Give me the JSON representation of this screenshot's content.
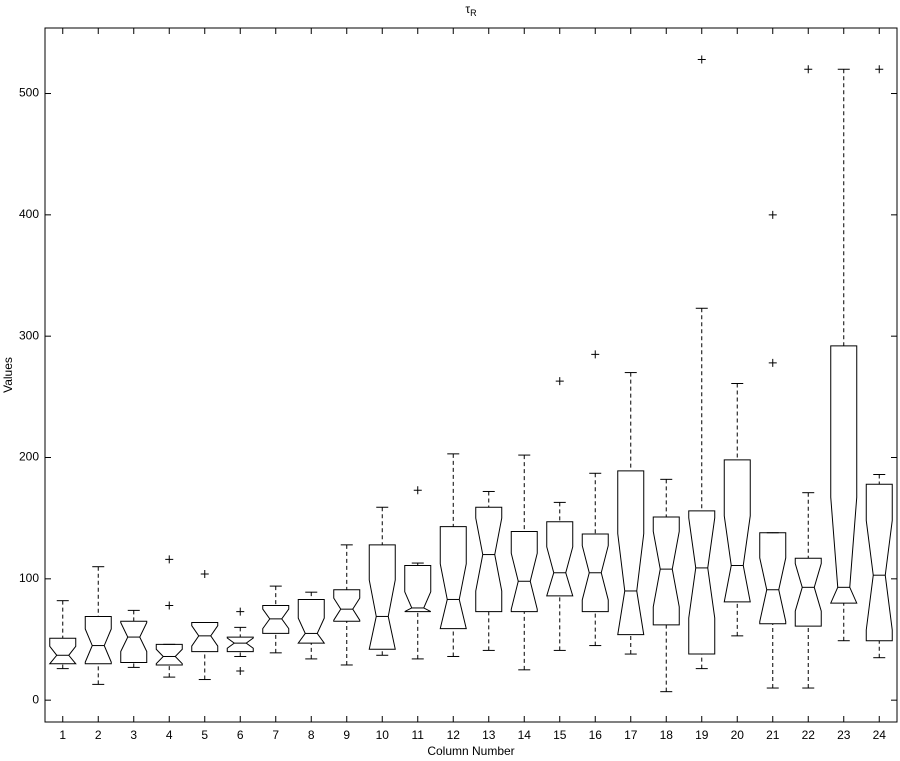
{
  "chart_data": {
    "type": "box",
    "title": "τ",
    "title_subscript": "R",
    "xlabel": "Column Number",
    "ylabel": "Values",
    "categories": [
      "1",
      "2",
      "3",
      "4",
      "5",
      "6",
      "7",
      "8",
      "9",
      "10",
      "11",
      "12",
      "13",
      "14",
      "15",
      "16",
      "17",
      "18",
      "19",
      "20",
      "21",
      "22",
      "23",
      "24"
    ],
    "boxes": [
      {
        "whisker_low": 26,
        "q1": 30,
        "median": 37,
        "q3": 51,
        "whisker_high": 82,
        "outliers": []
      },
      {
        "whisker_low": 13,
        "q1": 30,
        "median": 45,
        "q3": 69,
        "whisker_high": 110,
        "outliers": []
      },
      {
        "whisker_low": 27,
        "q1": 31,
        "median": 52,
        "q3": 65,
        "whisker_high": 74,
        "outliers": []
      },
      {
        "whisker_low": 19,
        "q1": 29,
        "median": 36,
        "q3": 46,
        "whisker_high": 46,
        "outliers": [
          78,
          116
        ]
      },
      {
        "whisker_low": 17,
        "q1": 40,
        "median": 53,
        "q3": 64,
        "whisker_high": 64,
        "outliers": [
          104
        ]
      },
      {
        "whisker_low": 36,
        "q1": 40,
        "median": 47,
        "q3": 52,
        "whisker_high": 60,
        "outliers": [
          73,
          24
        ]
      },
      {
        "whisker_low": 39,
        "q1": 55,
        "median": 67,
        "q3": 78,
        "whisker_high": 94,
        "outliers": []
      },
      {
        "whisker_low": 34,
        "q1": 47,
        "median": 55,
        "q3": 83,
        "whisker_high": 89,
        "outliers": []
      },
      {
        "whisker_low": 29,
        "q1": 65,
        "median": 75,
        "q3": 91,
        "whisker_high": 128,
        "outliers": []
      },
      {
        "whisker_low": 37,
        "q1": 42,
        "median": 69,
        "q3": 128,
        "whisker_high": 159,
        "outliers": []
      },
      {
        "whisker_low": 34,
        "q1": 73,
        "median": 76,
        "q3": 111,
        "whisker_high": 113,
        "outliers": [
          173
        ]
      },
      {
        "whisker_low": 36,
        "q1": 59,
        "median": 83,
        "q3": 143,
        "whisker_high": 203,
        "outliers": []
      },
      {
        "whisker_low": 41,
        "q1": 73,
        "median": 120,
        "q3": 159,
        "whisker_high": 172,
        "outliers": []
      },
      {
        "whisker_low": 25,
        "q1": 73,
        "median": 98,
        "q3": 139,
        "whisker_high": 202,
        "outliers": []
      },
      {
        "whisker_low": 41,
        "q1": 86,
        "median": 105,
        "q3": 147,
        "whisker_high": 163,
        "outliers": [
          263
        ]
      },
      {
        "whisker_low": 45,
        "q1": 73,
        "median": 105,
        "q3": 137,
        "whisker_high": 187,
        "outliers": [
          285
        ]
      },
      {
        "whisker_low": 38,
        "q1": 54,
        "median": 90,
        "q3": 189,
        "whisker_high": 270,
        "outliers": []
      },
      {
        "whisker_low": 7,
        "q1": 62,
        "median": 108,
        "q3": 151,
        "whisker_high": 182,
        "outliers": []
      },
      {
        "whisker_low": 26,
        "q1": 38,
        "median": 109,
        "q3": 156,
        "whisker_high": 323,
        "outliers": [
          528
        ]
      },
      {
        "whisker_low": 53,
        "q1": 81,
        "median": 111,
        "q3": 198,
        "whisker_high": 261,
        "outliers": []
      },
      {
        "whisker_low": 10,
        "q1": 63,
        "median": 91,
        "q3": 138,
        "whisker_high": 138,
        "outliers": [
          278,
          400
        ]
      },
      {
        "whisker_low": 10,
        "q1": 61,
        "median": 93,
        "q3": 117,
        "whisker_high": 171,
        "outliers": [
          520
        ]
      },
      {
        "whisker_low": 49,
        "q1": 80,
        "median": 93,
        "q3": 292,
        "whisker_high": 520,
        "outliers": []
      },
      {
        "whisker_low": 35,
        "q1": 49,
        "median": 103,
        "q3": 178,
        "whisker_high": 186,
        "outliers": [
          520
        ]
      }
    ],
    "color": "#000000",
    "ylim": [
      -18,
      554
    ],
    "yticks": [
      0,
      100,
      200,
      300,
      400,
      500
    ]
  }
}
